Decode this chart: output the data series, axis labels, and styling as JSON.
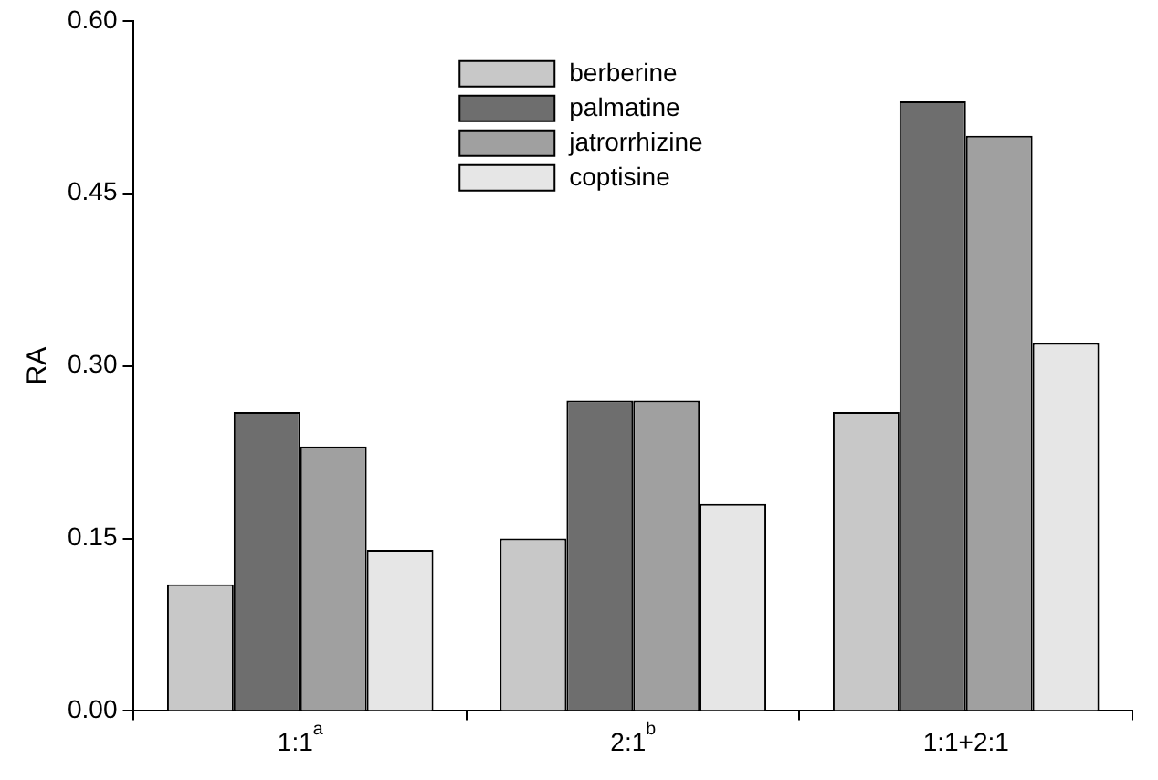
{
  "chart_data": {
    "type": "bar",
    "ylabel": "RA",
    "categories": [
      "1:1$^{a}$",
      "2:1$^{b}$",
      "1:1+2:1"
    ],
    "series": [
      {
        "name": "berberine",
        "color": "#c8c8c8",
        "values": [
          0.11,
          0.15,
          0.26
        ]
      },
      {
        "name": "palmatine",
        "color": "#6e6e6e",
        "values": [
          0.26,
          0.27,
          0.53
        ]
      },
      {
        "name": "jatrorrhizine",
        "color": "#a0a0a0",
        "values": [
          0.23,
          0.27,
          0.5
        ]
      },
      {
        "name": "coptisine",
        "color": "#e6e6e6",
        "values": [
          0.14,
          0.18,
          0.32
        ]
      }
    ],
    "ylim": [
      0,
      0.6
    ],
    "yticks": [
      {
        "value": 0,
        "label": "0.00"
      },
      {
        "value": 0.15,
        "label": "0.15"
      },
      {
        "value": 0.3,
        "label": "0.30"
      },
      {
        "value": 0.45,
        "label": "0.45"
      },
      {
        "value": 0.6,
        "label": "0.60"
      }
    ],
    "grid": false,
    "legend": "top"
  }
}
